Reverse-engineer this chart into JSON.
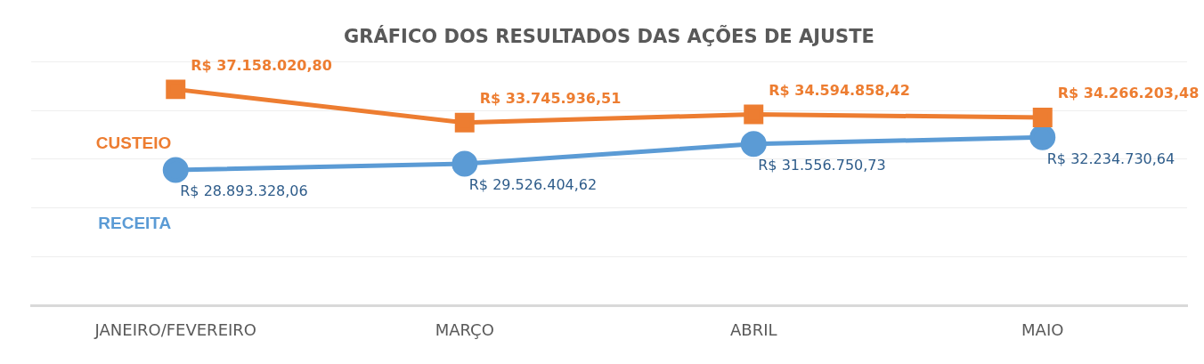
{
  "chart_data": {
    "type": "line",
    "title": "GRÁFICO DOS RESULTADOS DAS AÇÕES DE AJUSTE",
    "categories": [
      "JANEIRO/FEVEREIRO",
      "MARÇO",
      "ABRIL",
      "MAIO"
    ],
    "series": [
      {
        "name": "CUSTEIO",
        "color": "#ed7d31",
        "marker": "square",
        "values": [
          37158020.8,
          33745936.51,
          34594858.42,
          34266203.48
        ],
        "value_labels": [
          "R$ 37.158.020,80",
          "R$ 33.745.936,51",
          "R$ 34.594.858,42",
          "R$ 34.266.203,48"
        ]
      },
      {
        "name": "RECEITA",
        "color": "#5b9bd5",
        "marker": "circle",
        "values": [
          28893328.06,
          29526404.62,
          31556750.73,
          32234730.64
        ],
        "value_labels": [
          "R$ 28.893.328,06",
          "R$ 29.526.404,62",
          "R$ 31.556.750,73",
          "R$ 32.234.730,64"
        ]
      }
    ],
    "ylim": [
      15000000,
      40000000
    ],
    "yticks": [
      {
        "value": 15000000,
        "label": null
      },
      {
        "value": 20000000,
        "label": null
      },
      {
        "value": 25000000,
        "label": null
      },
      {
        "value": 30000000,
        "label": null
      },
      {
        "value": 35000000,
        "label": null
      },
      {
        "value": 40000000,
        "label": null
      }
    ],
    "grid": "y",
    "legend": false,
    "tick_labels": "x",
    "line_style": "solid"
  }
}
